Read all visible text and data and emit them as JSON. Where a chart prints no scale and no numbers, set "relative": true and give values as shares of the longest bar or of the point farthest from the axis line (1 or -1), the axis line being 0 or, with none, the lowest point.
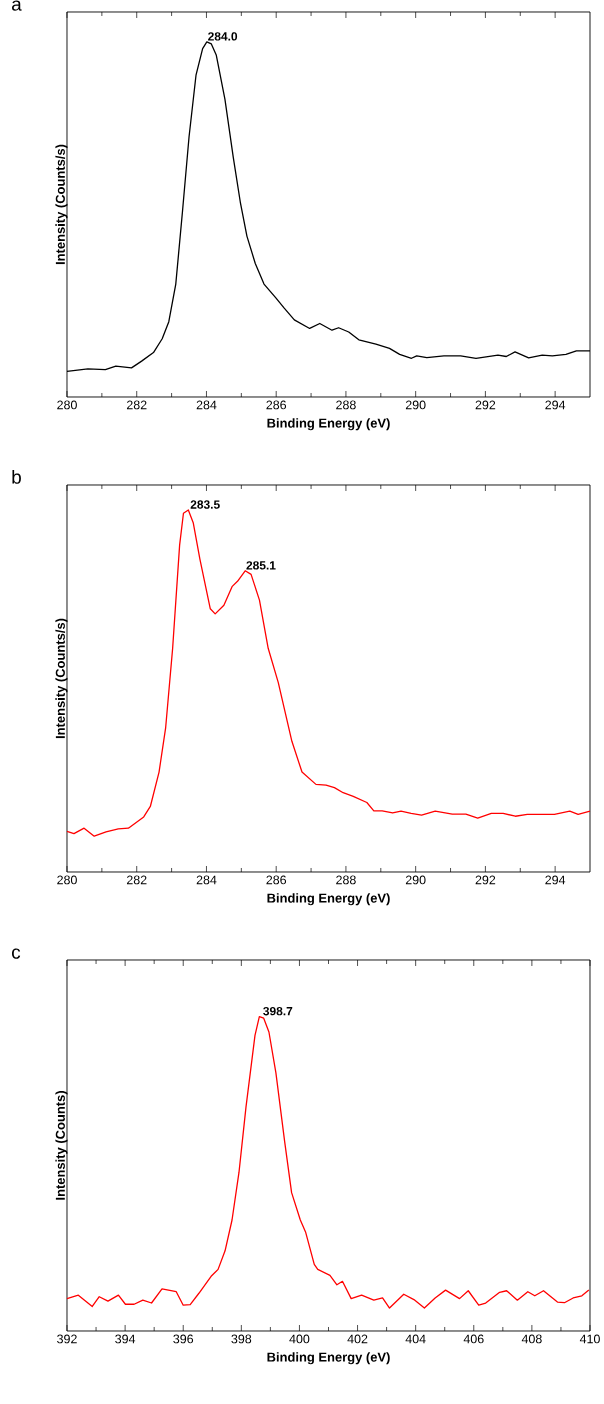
{
  "chart_data": [
    {
      "type": "line",
      "title": "a",
      "xlabel": "Binding Energy (eV)",
      "ylabel": "Intensity (Counts/s)",
      "relative": true,
      "xlim": [
        280,
        295
      ],
      "xticks": [
        280,
        282,
        284,
        286,
        288,
        290,
        292,
        294
      ],
      "annotations": [
        {
          "text": "284.0",
          "x": 284.0,
          "y": 1.0
        }
      ],
      "series": [
        {
          "color": "#000000",
          "x": [
            280.0,
            280.6,
            281.1,
            281.4,
            281.85,
            282.14,
            282.48,
            282.73,
            282.92,
            283.12,
            283.31,
            283.5,
            283.7,
            283.89,
            284.01,
            284.14,
            284.28,
            284.53,
            284.77,
            284.97,
            285.16,
            285.4,
            285.65,
            285.99,
            286.23,
            286.52,
            286.96,
            287.25,
            287.6,
            287.79,
            288.08,
            288.37,
            288.86,
            289.25,
            289.54,
            289.88,
            290.03,
            290.32,
            290.81,
            291.29,
            291.73,
            292.36,
            292.6,
            292.85,
            293.24,
            293.63,
            293.92,
            294.31,
            294.61,
            295.0
          ],
          "values": [
            0.072,
            0.079,
            0.077,
            0.087,
            0.082,
            0.101,
            0.125,
            0.164,
            0.212,
            0.318,
            0.52,
            0.732,
            0.906,
            0.981,
            1.0,
            0.994,
            0.963,
            0.838,
            0.674,
            0.549,
            0.453,
            0.376,
            0.318,
            0.279,
            0.25,
            0.217,
            0.193,
            0.207,
            0.188,
            0.195,
            0.183,
            0.161,
            0.149,
            0.137,
            0.12,
            0.109,
            0.116,
            0.111,
            0.116,
            0.116,
            0.109,
            0.118,
            0.114,
            0.127,
            0.11,
            0.118,
            0.116,
            0.12,
            0.13,
            0.13
          ]
        }
      ]
    },
    {
      "type": "line",
      "title": "b",
      "xlabel": "Binding Energy (eV)",
      "ylabel": "Intensity (Counts/s)",
      "relative": true,
      "xlim": [
        280,
        295
      ],
      "xticks": [
        280,
        282,
        284,
        286,
        288,
        290,
        292,
        294
      ],
      "annotations": [
        {
          "text": "283.5",
          "x": 283.5,
          "y": 1.0
        },
        {
          "text": "285.1",
          "x": 285.1,
          "y": 0.832
        }
      ],
      "series": [
        {
          "color": "#ff0000",
          "x": [
            280.0,
            280.2,
            280.49,
            280.78,
            281.12,
            281.47,
            281.76,
            282.2,
            282.39,
            282.64,
            282.83,
            283.03,
            283.23,
            283.34,
            283.48,
            283.62,
            283.81,
            284.11,
            284.25,
            284.5,
            284.74,
            284.89,
            285.11,
            285.28,
            285.52,
            285.77,
            286.06,
            286.45,
            286.74,
            287.14,
            287.43,
            287.67,
            287.92,
            288.21,
            288.6,
            288.8,
            289.04,
            289.34,
            289.58,
            289.87,
            290.17,
            290.56,
            291.05,
            291.44,
            291.78,
            292.17,
            292.51,
            292.86,
            293.2,
            293.49,
            293.98,
            294.42,
            294.66,
            295.0
          ],
          "values": [
            0.112,
            0.106,
            0.121,
            0.099,
            0.111,
            0.119,
            0.121,
            0.152,
            0.181,
            0.276,
            0.399,
            0.618,
            0.903,
            0.991,
            1.0,
            0.965,
            0.865,
            0.727,
            0.713,
            0.737,
            0.789,
            0.803,
            0.832,
            0.822,
            0.751,
            0.618,
            0.523,
            0.361,
            0.276,
            0.242,
            0.24,
            0.233,
            0.219,
            0.209,
            0.192,
            0.169,
            0.169,
            0.163,
            0.168,
            0.162,
            0.157,
            0.168,
            0.16,
            0.16,
            0.149,
            0.162,
            0.162,
            0.154,
            0.159,
            0.159,
            0.159,
            0.168,
            0.159,
            0.168
          ]
        }
      ]
    },
    {
      "type": "line",
      "title": "c",
      "xlabel": "Binding Energy (eV)",
      "ylabel": "Intensity (Counts)",
      "relative": true,
      "xlim": [
        392,
        410
      ],
      "xticks": [
        392,
        394,
        396,
        398,
        400,
        402,
        404,
        406,
        408,
        410
      ],
      "annotations": [
        {
          "text": "398.7",
          "x": 398.7,
          "y": 1.0
        }
      ],
      "series": [
        {
          "color": "#ff0000",
          "x": [
            392.0,
            392.39,
            392.87,
            393.11,
            393.41,
            393.77,
            394.01,
            394.31,
            394.61,
            394.91,
            395.27,
            395.76,
            396.0,
            396.24,
            396.54,
            396.96,
            397.2,
            397.44,
            397.68,
            397.92,
            398.16,
            398.47,
            398.62,
            398.77,
            398.95,
            399.19,
            399.49,
            399.73,
            400.03,
            400.21,
            400.51,
            400.63,
            401.05,
            401.29,
            401.48,
            401.78,
            402.14,
            402.56,
            402.86,
            403.1,
            403.59,
            403.94,
            404.3,
            404.67,
            405.03,
            405.51,
            405.81,
            406.17,
            406.41,
            406.89,
            407.13,
            407.5,
            407.86,
            408.1,
            408.4,
            408.88,
            409.12,
            409.42,
            409.72,
            409.96
          ],
          "values": [
            0.103,
            0.114,
            0.078,
            0.109,
            0.095,
            0.114,
            0.085,
            0.085,
            0.098,
            0.089,
            0.134,
            0.125,
            0.082,
            0.084,
            0.12,
            0.174,
            0.196,
            0.255,
            0.353,
            0.505,
            0.712,
            0.94,
            1.0,
            0.995,
            0.951,
            0.821,
            0.603,
            0.44,
            0.353,
            0.315,
            0.212,
            0.196,
            0.177,
            0.147,
            0.158,
            0.103,
            0.114,
            0.098,
            0.105,
            0.073,
            0.117,
            0.1,
            0.073,
            0.105,
            0.13,
            0.103,
            0.128,
            0.082,
            0.089,
            0.123,
            0.128,
            0.098,
            0.125,
            0.112,
            0.128,
            0.092,
            0.09,
            0.105,
            0.112,
            0.13
          ]
        }
      ]
    }
  ]
}
